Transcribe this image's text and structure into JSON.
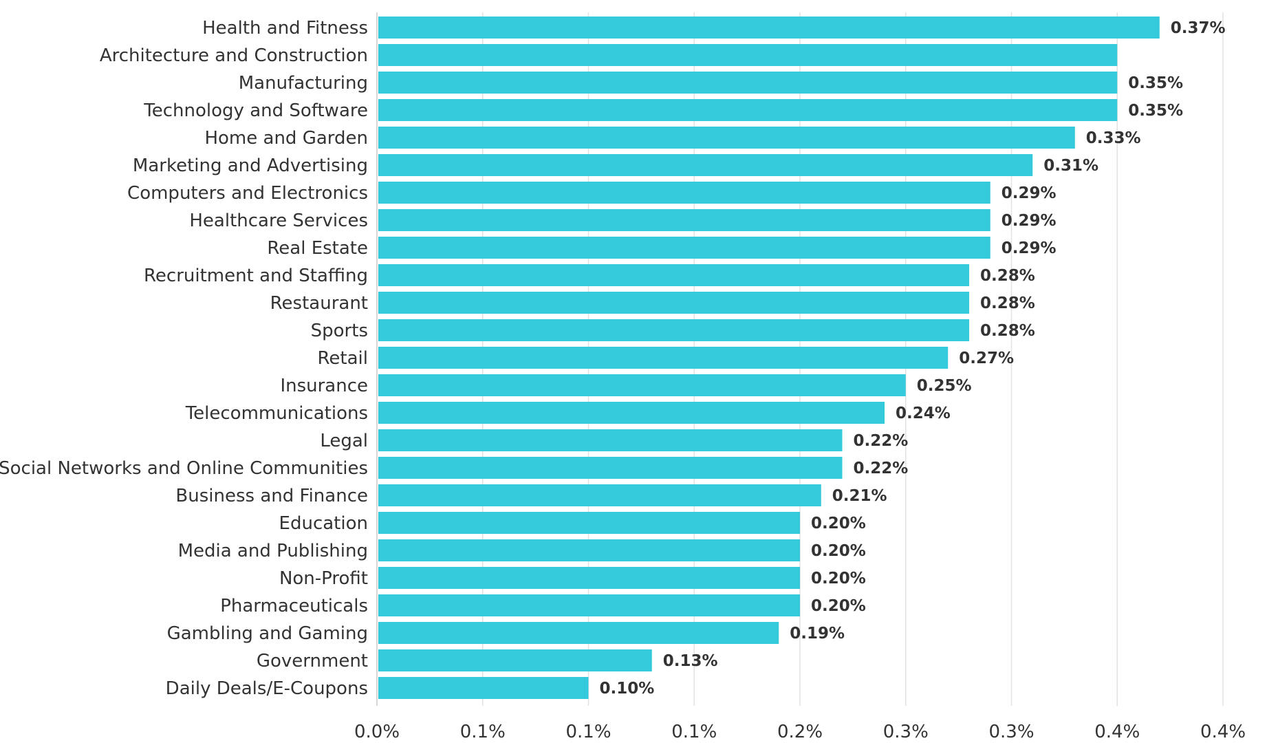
{
  "chart_data": {
    "type": "bar",
    "orientation": "horizontal",
    "title": "",
    "xlabel": "",
    "ylabel": "",
    "categories": [
      "Health and Fitness",
      "Architecture and Construction",
      "Manufacturing",
      "Technology and Software",
      "Home and Garden",
      "Marketing and Advertising",
      "Computers and Electronics",
      "Healthcare Services",
      "Real Estate",
      "Recruitment and Staffing",
      "Restaurant",
      "Sports",
      "Retail",
      "Insurance",
      "Telecommunications",
      "Legal",
      "Social Networks and Online Communities",
      "Business and Finance",
      "Education",
      "Media and Publishing",
      "Non-Profit",
      "Pharmaceuticals",
      "Gambling and Gaming",
      "Government",
      "Daily Deals/E-Coupons"
    ],
    "values": [
      0.37,
      0.35,
      0.35,
      0.35,
      0.33,
      0.31,
      0.29,
      0.29,
      0.29,
      0.28,
      0.28,
      0.28,
      0.27,
      0.25,
      0.24,
      0.22,
      0.22,
      0.21,
      0.2,
      0.2,
      0.2,
      0.2,
      0.19,
      0.13,
      0.1
    ],
    "value_labels": [
      "0.37%",
      "",
      "0.35%",
      "0.35%",
      "0.33%",
      "0.31%",
      "0.29%",
      "0.29%",
      "0.29%",
      "0.28%",
      "0.28%",
      "0.28%",
      "0.27%",
      "0.25%",
      "0.24%",
      "0.22%",
      "0.22%",
      "0.21%",
      "0.20%",
      "0.20%",
      "0.20%",
      "0.20%",
      "0.19%",
      "0.13%",
      "0.10%"
    ],
    "x_ticks": [
      0,
      0.05,
      0.1,
      0.15,
      0.2,
      0.25,
      0.3,
      0.35,
      0.4
    ],
    "x_tick_labels": [
      "0.0%",
      "0.1%",
      "0.1%",
      "0.1%",
      "0.2%",
      "0.3%",
      "0.3%",
      "0.4%",
      "0.4%"
    ],
    "xlim": [
      0,
      0.4
    ],
    "grid": true,
    "bar_color": "#35c9dc",
    "text_color": "#333333",
    "grid_color": "#e2e2e2"
  }
}
